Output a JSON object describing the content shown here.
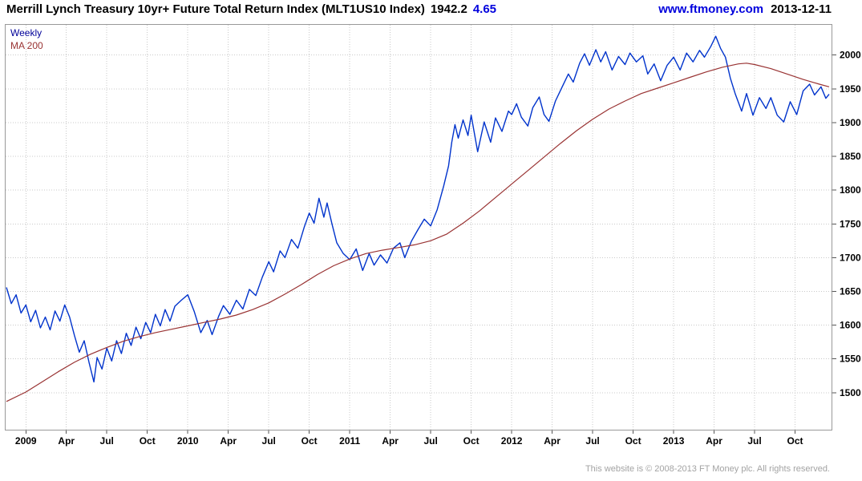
{
  "header": {
    "title": "Merrill Lynch Treasury 10yr+ Future Total Return Index (MLT1US10 Index)",
    "last_value": "1942.2",
    "change": "4.65",
    "website": "www.ftmoney.com",
    "date": "2013-12-11"
  },
  "legend": {
    "series1": "Weekly",
    "series2": "MA 200"
  },
  "footer": {
    "copyright": "This website is © 2008-2013 FT Money plc. All rights reserved."
  },
  "colors": {
    "price_line": "#0033cc",
    "ma_line": "#993333",
    "grid": "#c9c9c9",
    "border": "#999999",
    "header_accent": "#0000dd",
    "legend_weekly": "#000099",
    "legend_ma": "#993333",
    "footer_text": "#a3a3a3"
  },
  "chart_data": {
    "type": "line",
    "title": "Merrill Lynch Treasury 10yr+ Future Total Return Index (MLT1US10 Index)",
    "xlabel": "",
    "ylabel": "",
    "grid": true,
    "legend_position": "top-left",
    "x_domain": [
      2008.87,
      2013.98
    ],
    "y_domain": [
      1444,
      2046
    ],
    "y_ticks": [
      1500,
      1550,
      1600,
      1650,
      1700,
      1750,
      1800,
      1850,
      1900,
      1950,
      2000
    ],
    "x_ticks": [
      {
        "x": 2009.0,
        "label": "2009"
      },
      {
        "x": 2009.25,
        "label": "Apr"
      },
      {
        "x": 2009.5,
        "label": "Jul"
      },
      {
        "x": 2009.75,
        "label": "Oct"
      },
      {
        "x": 2010.0,
        "label": "2010"
      },
      {
        "x": 2010.25,
        "label": "Apr"
      },
      {
        "x": 2010.5,
        "label": "Jul"
      },
      {
        "x": 2010.75,
        "label": "Oct"
      },
      {
        "x": 2011.0,
        "label": "2011"
      },
      {
        "x": 2011.25,
        "label": "Apr"
      },
      {
        "x": 2011.5,
        "label": "Jul"
      },
      {
        "x": 2011.75,
        "label": "Oct"
      },
      {
        "x": 2012.0,
        "label": "2012"
      },
      {
        "x": 2012.25,
        "label": "Apr"
      },
      {
        "x": 2012.5,
        "label": "Jul"
      },
      {
        "x": 2012.75,
        "label": "Oct"
      },
      {
        "x": 2013.0,
        "label": "2013"
      },
      {
        "x": 2013.25,
        "label": "Apr"
      },
      {
        "x": 2013.5,
        "label": "Jul"
      },
      {
        "x": 2013.75,
        "label": "Oct"
      }
    ],
    "series": [
      {
        "name": "Weekly",
        "color": "#0033cc",
        "width": 1.4,
        "points": [
          [
            2008.88,
            1656
          ],
          [
            2008.91,
            1632
          ],
          [
            2008.94,
            1645
          ],
          [
            2008.97,
            1618
          ],
          [
            2009.0,
            1630
          ],
          [
            2009.03,
            1605
          ],
          [
            2009.06,
            1622
          ],
          [
            2009.09,
            1596
          ],
          [
            2009.12,
            1612
          ],
          [
            2009.15,
            1593
          ],
          [
            2009.18,
            1621
          ],
          [
            2009.21,
            1606
          ],
          [
            2009.24,
            1630
          ],
          [
            2009.27,
            1612
          ],
          [
            2009.3,
            1585
          ],
          [
            2009.33,
            1560
          ],
          [
            2009.36,
            1577
          ],
          [
            2009.39,
            1545
          ],
          [
            2009.42,
            1516
          ],
          [
            2009.44,
            1552
          ],
          [
            2009.47,
            1535
          ],
          [
            2009.5,
            1566
          ],
          [
            2009.53,
            1547
          ],
          [
            2009.56,
            1577
          ],
          [
            2009.59,
            1558
          ],
          [
            2009.62,
            1588
          ],
          [
            2009.65,
            1570
          ],
          [
            2009.68,
            1597
          ],
          [
            2009.71,
            1580
          ],
          [
            2009.74,
            1604
          ],
          [
            2009.77,
            1589
          ],
          [
            2009.8,
            1616
          ],
          [
            2009.83,
            1599
          ],
          [
            2009.86,
            1623
          ],
          [
            2009.89,
            1606
          ],
          [
            2009.92,
            1628
          ],
          [
            2009.96,
            1637
          ],
          [
            2010.0,
            1645
          ],
          [
            2010.04,
            1620
          ],
          [
            2010.08,
            1589
          ],
          [
            2010.12,
            1607
          ],
          [
            2010.15,
            1586
          ],
          [
            2010.19,
            1613
          ],
          [
            2010.22,
            1629
          ],
          [
            2010.26,
            1616
          ],
          [
            2010.3,
            1637
          ],
          [
            2010.34,
            1624
          ],
          [
            2010.38,
            1653
          ],
          [
            2010.42,
            1644
          ],
          [
            2010.46,
            1671
          ],
          [
            2010.5,
            1694
          ],
          [
            2010.53,
            1679
          ],
          [
            2010.57,
            1710
          ],
          [
            2010.6,
            1700
          ],
          [
            2010.64,
            1727
          ],
          [
            2010.68,
            1714
          ],
          [
            2010.72,
            1746
          ],
          [
            2010.75,
            1766
          ],
          [
            2010.78,
            1751
          ],
          [
            2010.81,
            1788
          ],
          [
            2010.84,
            1760
          ],
          [
            2010.86,
            1781
          ],
          [
            2010.89,
            1750
          ],
          [
            2010.92,
            1722
          ],
          [
            2010.96,
            1706
          ],
          [
            2011.0,
            1697
          ],
          [
            2011.04,
            1713
          ],
          [
            2011.08,
            1681
          ],
          [
            2011.12,
            1706
          ],
          [
            2011.15,
            1689
          ],
          [
            2011.19,
            1704
          ],
          [
            2011.23,
            1692
          ],
          [
            2011.27,
            1714
          ],
          [
            2011.31,
            1722
          ],
          [
            2011.34,
            1700
          ],
          [
            2011.38,
            1724
          ],
          [
            2011.42,
            1741
          ],
          [
            2011.46,
            1757
          ],
          [
            2011.5,
            1747
          ],
          [
            2011.54,
            1771
          ],
          [
            2011.58,
            1806
          ],
          [
            2011.61,
            1836
          ],
          [
            2011.63,
            1871
          ],
          [
            2011.65,
            1897
          ],
          [
            2011.67,
            1877
          ],
          [
            2011.7,
            1904
          ],
          [
            2011.73,
            1881
          ],
          [
            2011.75,
            1911
          ],
          [
            2011.79,
            1857
          ],
          [
            2011.83,
            1901
          ],
          [
            2011.87,
            1871
          ],
          [
            2011.9,
            1907
          ],
          [
            2011.94,
            1887
          ],
          [
            2011.98,
            1917
          ],
          [
            2012.0,
            1912
          ],
          [
            2012.03,
            1928
          ],
          [
            2012.06,
            1908
          ],
          [
            2012.1,
            1895
          ],
          [
            2012.13,
            1922
          ],
          [
            2012.17,
            1938
          ],
          [
            2012.2,
            1912
          ],
          [
            2012.23,
            1902
          ],
          [
            2012.27,
            1932
          ],
          [
            2012.31,
            1952
          ],
          [
            2012.35,
            1972
          ],
          [
            2012.38,
            1960
          ],
          [
            2012.42,
            1988
          ],
          [
            2012.45,
            2002
          ],
          [
            2012.48,
            1985
          ],
          [
            2012.52,
            2008
          ],
          [
            2012.55,
            1990
          ],
          [
            2012.58,
            2005
          ],
          [
            2012.62,
            1978
          ],
          [
            2012.66,
            1998
          ],
          [
            2012.7,
            1986
          ],
          [
            2012.73,
            2003
          ],
          [
            2012.77,
            1990
          ],
          [
            2012.81,
            1999
          ],
          [
            2012.84,
            1972
          ],
          [
            2012.88,
            1987
          ],
          [
            2012.92,
            1962
          ],
          [
            2012.96,
            1985
          ],
          [
            2013.0,
            1997
          ],
          [
            2013.04,
            1978
          ],
          [
            2013.08,
            2003
          ],
          [
            2013.12,
            1990
          ],
          [
            2013.16,
            2007
          ],
          [
            2013.19,
            1997
          ],
          [
            2013.23,
            2013
          ],
          [
            2013.26,
            2028
          ],
          [
            2013.29,
            2010
          ],
          [
            2013.32,
            1997
          ],
          [
            2013.35,
            1966
          ],
          [
            2013.38,
            1943
          ],
          [
            2013.42,
            1917
          ],
          [
            2013.45,
            1943
          ],
          [
            2013.49,
            1911
          ],
          [
            2013.53,
            1937
          ],
          [
            2013.57,
            1921
          ],
          [
            2013.6,
            1937
          ],
          [
            2013.64,
            1911
          ],
          [
            2013.68,
            1901
          ],
          [
            2013.72,
            1931
          ],
          [
            2013.76,
            1912
          ],
          [
            2013.8,
            1947
          ],
          [
            2013.84,
            1957
          ],
          [
            2013.87,
            1941
          ],
          [
            2013.91,
            1953
          ],
          [
            2013.94,
            1936
          ],
          [
            2013.96,
            1942
          ]
        ]
      },
      {
        "name": "MA 200",
        "color": "#993333",
        "width": 1.2,
        "points": [
          [
            2008.88,
            1487
          ],
          [
            2009.0,
            1501
          ],
          [
            2009.1,
            1516
          ],
          [
            2009.2,
            1531
          ],
          [
            2009.3,
            1545
          ],
          [
            2009.4,
            1557
          ],
          [
            2009.5,
            1567
          ],
          [
            2009.6,
            1576
          ],
          [
            2009.7,
            1583
          ],
          [
            2009.8,
            1589
          ],
          [
            2009.9,
            1594
          ],
          [
            2010.0,
            1599
          ],
          [
            2010.1,
            1604
          ],
          [
            2010.2,
            1609
          ],
          [
            2010.3,
            1615
          ],
          [
            2010.4,
            1623
          ],
          [
            2010.5,
            1633
          ],
          [
            2010.6,
            1646
          ],
          [
            2010.7,
            1660
          ],
          [
            2010.8,
            1675
          ],
          [
            2010.9,
            1688
          ],
          [
            2011.0,
            1698
          ],
          [
            2011.1,
            1706
          ],
          [
            2011.2,
            1711
          ],
          [
            2011.3,
            1715
          ],
          [
            2011.4,
            1719
          ],
          [
            2011.5,
            1725
          ],
          [
            2011.6,
            1735
          ],
          [
            2011.7,
            1751
          ],
          [
            2011.8,
            1769
          ],
          [
            2011.9,
            1789
          ],
          [
            2012.0,
            1809
          ],
          [
            2012.1,
            1829
          ],
          [
            2012.2,
            1849
          ],
          [
            2012.3,
            1869
          ],
          [
            2012.4,
            1888
          ],
          [
            2012.5,
            1905
          ],
          [
            2012.6,
            1920
          ],
          [
            2012.7,
            1932
          ],
          [
            2012.8,
            1943
          ],
          [
            2012.9,
            1951
          ],
          [
            2013.0,
            1959
          ],
          [
            2013.1,
            1967
          ],
          [
            2013.2,
            1975
          ],
          [
            2013.3,
            1982
          ],
          [
            2013.4,
            1987
          ],
          [
            2013.45,
            1988
          ],
          [
            2013.5,
            1986
          ],
          [
            2013.6,
            1980
          ],
          [
            2013.7,
            1972
          ],
          [
            2013.8,
            1964
          ],
          [
            2013.9,
            1957
          ],
          [
            2013.96,
            1953
          ]
        ]
      }
    ]
  }
}
